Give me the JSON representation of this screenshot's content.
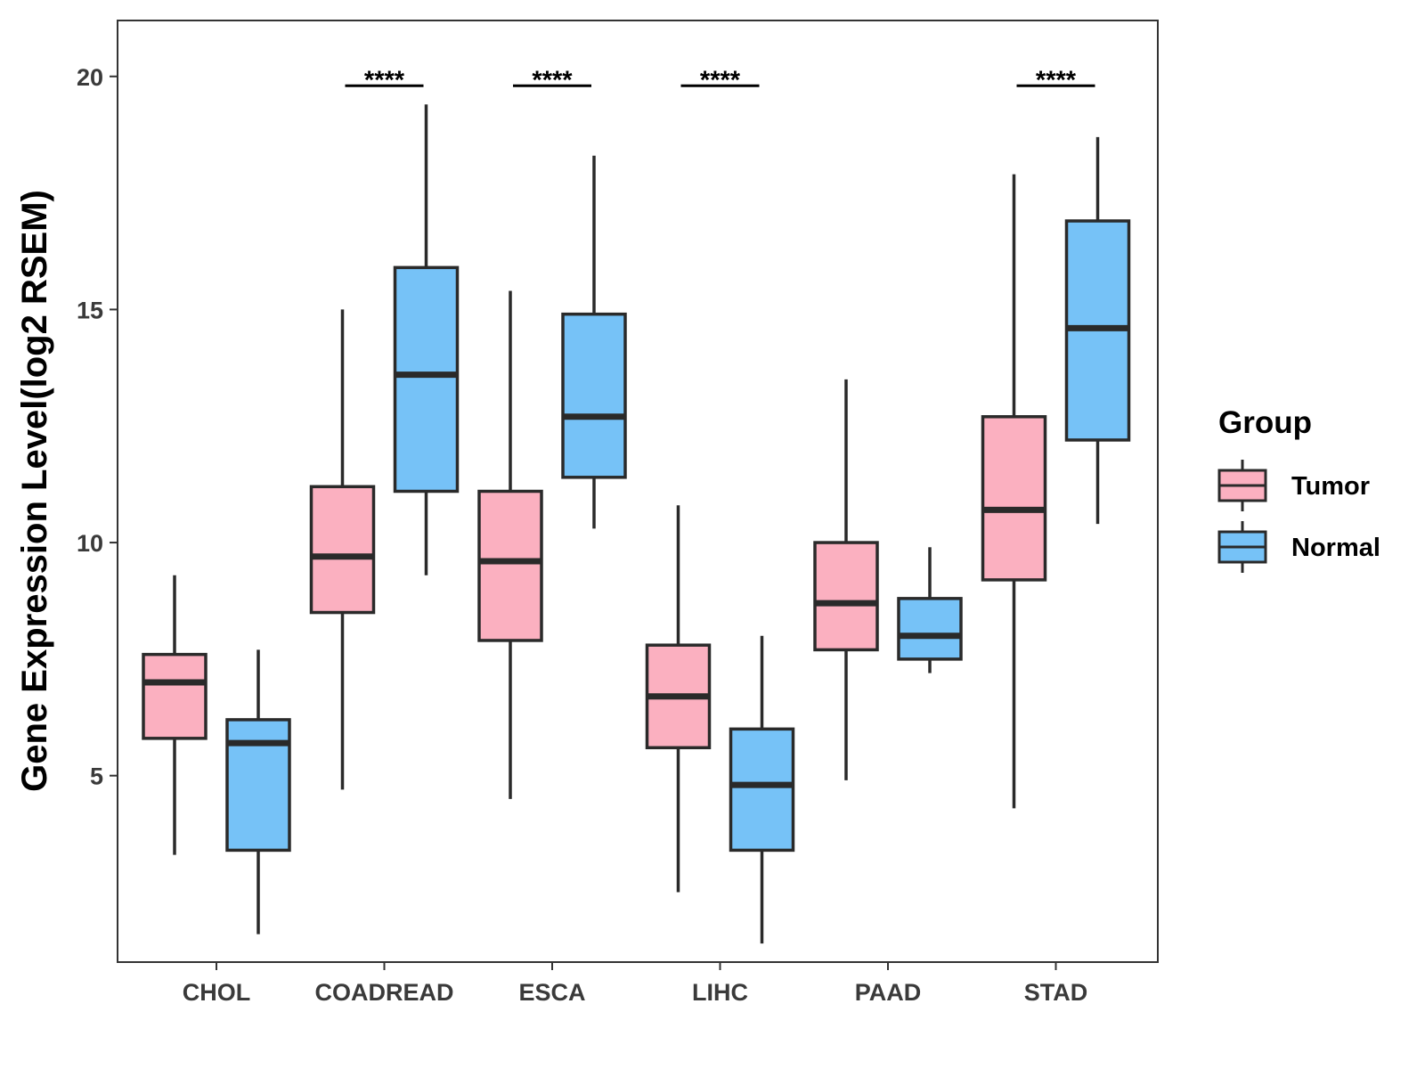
{
  "chart_data": {
    "type": "boxplot",
    "title": "",
    "xlabel": "",
    "ylabel": "Gene Expression Level(log2 RSEM)",
    "ylim": [
      1.0,
      21.2
    ],
    "yticks": [
      5,
      10,
      15,
      20
    ],
    "ytick_labels": [
      "5",
      "10",
      "15",
      "20"
    ],
    "grid": false,
    "categories": [
      "CHOL",
      "COADREAD",
      "ESCA",
      "LIHC",
      "PAAD",
      "STAD"
    ],
    "legend": {
      "title": "Group",
      "placement": "right",
      "entries": [
        {
          "name": "Tumor",
          "color": "#FBB0C0"
        },
        {
          "name": "Normal",
          "color": "#76C2F7"
        }
      ]
    },
    "series": [
      {
        "name": "Tumor",
        "color": "#FBB0C0",
        "boxes": [
          {
            "category": "CHOL",
            "min": 3.3,
            "q1": 5.8,
            "median": 7.0,
            "q3": 7.6,
            "max": 9.3
          },
          {
            "category": "COADREAD",
            "min": 4.7,
            "q1": 8.5,
            "median": 9.7,
            "q3": 11.2,
            "max": 15.0
          },
          {
            "category": "ESCA",
            "min": 4.5,
            "q1": 7.9,
            "median": 9.6,
            "q3": 11.1,
            "max": 15.4
          },
          {
            "category": "LIHC",
            "min": 2.5,
            "q1": 5.6,
            "median": 6.7,
            "q3": 7.8,
            "max": 10.8
          },
          {
            "category": "PAAD",
            "min": 4.9,
            "q1": 7.7,
            "median": 8.7,
            "q3": 10.0,
            "max": 13.5
          },
          {
            "category": "STAD",
            "min": 4.3,
            "q1": 9.2,
            "median": 10.7,
            "q3": 12.7,
            "max": 17.9
          }
        ]
      },
      {
        "name": "Normal",
        "color": "#76C2F7",
        "boxes": [
          {
            "category": "CHOL",
            "min": 1.6,
            "q1": 3.4,
            "median": 5.7,
            "q3": 6.2,
            "max": 7.7
          },
          {
            "category": "COADREAD",
            "min": 9.3,
            "q1": 11.1,
            "median": 13.6,
            "q3": 15.9,
            "max": 19.4
          },
          {
            "category": "ESCA",
            "min": 10.3,
            "q1": 11.4,
            "median": 12.7,
            "q3": 14.9,
            "max": 18.3
          },
          {
            "category": "LIHC",
            "min": 1.4,
            "q1": 3.4,
            "median": 4.8,
            "q3": 6.0,
            "max": 8.0
          },
          {
            "category": "PAAD",
            "min": 7.2,
            "q1": 7.5,
            "median": 8.0,
            "q3": 8.8,
            "max": 9.9
          },
          {
            "category": "STAD",
            "min": 10.4,
            "q1": 12.2,
            "median": 14.6,
            "q3": 16.9,
            "max": 18.7
          }
        ]
      }
    ],
    "annotations": [
      {
        "category": "COADREAD",
        "label": "****"
      },
      {
        "category": "ESCA",
        "label": "****"
      },
      {
        "category": "LIHC",
        "label": "****"
      },
      {
        "category": "STAD",
        "label": "****"
      }
    ]
  }
}
